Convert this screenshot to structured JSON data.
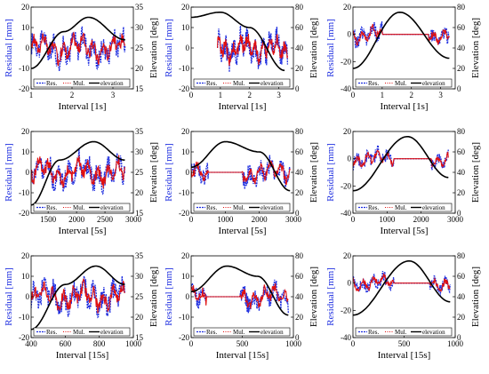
{
  "chart_data": [
    {
      "type": "line",
      "xlabel": "Interval [1s]",
      "ylabel_left": "Residual [mm]",
      "ylabel_right": "Elevation [deg]",
      "xlim": [
        1,
        3.5
      ],
      "xticks": [
        1,
        2,
        3
      ],
      "ylim_left": [
        -20,
        20
      ],
      "yticks_left": [
        -20,
        -10,
        0,
        10,
        20
      ],
      "ylim_right": [
        15,
        35
      ],
      "yticks_right": [
        15,
        20,
        25,
        30,
        35
      ],
      "x_active": [
        1,
        3.3
      ],
      "flat": [],
      "res_amp": 6,
      "mul_amp": 5,
      "elevation": {
        "x": [
          1,
          1.8,
          2.4,
          3.3
        ],
        "y": [
          20,
          29,
          32.5,
          27
        ]
      },
      "legend": [
        "Res.",
        "Mul.",
        "elevation"
      ]
    },
    {
      "type": "line",
      "xlabel": "Interval [1s]",
      "ylabel_left": "Residual [mm]",
      "ylabel_right": "Elevation [deg]",
      "xlim": [
        0,
        3.5
      ],
      "xticks": [
        0,
        1,
        2,
        3
      ],
      "ylim_left": [
        -20,
        20
      ],
      "yticks_left": [
        -20,
        -10,
        0,
        10,
        20
      ],
      "ylim_right": [
        0,
        80
      ],
      "yticks_right": [
        0,
        20,
        40,
        60,
        80
      ],
      "x_active": [
        0.9,
        3.3
      ],
      "flat": [
        [
          0,
          0.9
        ]
      ],
      "res_amp": 6,
      "mul_amp": 5,
      "elevation": {
        "x": [
          0,
          1,
          2,
          3.2
        ],
        "y": [
          70,
          75,
          60,
          18
        ]
      },
      "legend": [
        "Res.",
        "Mul.",
        "elevation"
      ]
    },
    {
      "type": "line",
      "xlabel": "Interval [1s]",
      "ylabel_left": "Residual [mm]",
      "ylabel_right": "Elevation [deg]",
      "xlim": [
        0,
        3.5
      ],
      "xticks": [
        0,
        1,
        2,
        3
      ],
      "ylim_left": [
        -40,
        20
      ],
      "yticks_left": [
        -40,
        -20,
        0,
        20
      ],
      "ylim_right": [
        0,
        80
      ],
      "yticks_right": [
        0,
        20,
        40,
        60,
        80
      ],
      "x_active": [
        0,
        3.3
      ],
      "flat": [
        [
          1,
          2.6
        ]
      ],
      "res_amp": 6,
      "mul_amp": 4,
      "elevation": {
        "x": [
          0,
          1.6,
          3.3
        ],
        "y": [
          20,
          75,
          30
        ]
      },
      "legend": [
        "Res.",
        "Mul.",
        "elevation"
      ]
    },
    {
      "type": "line",
      "xlabel": "Interval [5s]",
      "ylabel_left": "Residual [mm]",
      "ylabel_right": "Elevation [deg]",
      "xlim": [
        1200,
        3000
      ],
      "xticks": [
        1500,
        2000,
        2500,
        3000
      ],
      "ylim_left": [
        -20,
        20
      ],
      "yticks_left": [
        -20,
        -10,
        0,
        10,
        20
      ],
      "ylim_right": [
        15,
        35
      ],
      "yticks_right": [
        15,
        20,
        25,
        30,
        35
      ],
      "x_active": [
        1200,
        2850
      ],
      "flat": [],
      "res_amp": 6,
      "mul_amp": 5,
      "elevation": {
        "x": [
          1200,
          1700,
          2300,
          2850
        ],
        "y": [
          17,
          28,
          32.5,
          28
        ]
      },
      "legend": [
        "Res.",
        "Mul.",
        "elevation"
      ]
    },
    {
      "type": "line",
      "xlabel": "Interval [5s]",
      "ylabel_left": "Residual [mm]",
      "ylabel_right": "Elevation [deg]",
      "xlim": [
        0,
        3000
      ],
      "xticks": [
        0,
        1000,
        2000,
        3000
      ],
      "ylim_left": [
        -20,
        20
      ],
      "yticks_left": [
        -20,
        -10,
        0,
        10,
        20
      ],
      "ylim_right": [
        0,
        80
      ],
      "yticks_right": [
        0,
        20,
        40,
        60,
        80
      ],
      "x_active": [
        0,
        2900
      ],
      "flat": [
        [
          500,
          1500
        ]
      ],
      "res_amp": 5,
      "mul_amp": 4,
      "elevation": {
        "x": [
          0,
          1000,
          2000,
          2900
        ],
        "y": [
          45,
          70,
          60,
          22
        ]
      },
      "legend": [
        "Res.",
        "Mul.",
        "elevation"
      ]
    },
    {
      "type": "line",
      "xlabel": "Interval [5s]",
      "ylabel_left": "Residual [mm]",
      "ylabel_right": "Elevation [deg]",
      "xlim": [
        0,
        3000
      ],
      "xticks": [
        0,
        1000,
        2000,
        3000
      ],
      "ylim_left": [
        -40,
        20
      ],
      "yticks_left": [
        -40,
        -20,
        0,
        20
      ],
      "ylim_right": [
        0,
        80
      ],
      "yticks_right": [
        0,
        20,
        40,
        60,
        80
      ],
      "x_active": [
        0,
        2800
      ],
      "flat": [
        [
          1200,
          2300
        ]
      ],
      "res_amp": 5,
      "mul_amp": 4,
      "elevation": {
        "x": [
          0,
          1600,
          2800
        ],
        "y": [
          22,
          75,
          35
        ]
      },
      "legend": [
        "Res.",
        "Mul.",
        "elevation"
      ]
    },
    {
      "type": "line",
      "xlabel": "Interval [15s]",
      "ylabel_left": "Residual [mm]",
      "ylabel_right": "Elevation [deg]",
      "xlim": [
        400,
        1000
      ],
      "xticks": [
        400,
        600,
        800,
        1000
      ],
      "ylim_left": [
        -20,
        20
      ],
      "yticks_left": [
        -20,
        -10,
        0,
        10,
        20
      ],
      "ylim_right": [
        15,
        35
      ],
      "yticks_right": [
        15,
        20,
        25,
        30,
        35
      ],
      "x_active": [
        400,
        950
      ],
      "flat": [],
      "res_amp": 6,
      "mul_amp": 5,
      "elevation": {
        "x": [
          400,
          600,
          780,
          950
        ],
        "y": [
          17,
          28,
          32.5,
          28
        ]
      },
      "legend": [
        "Res.",
        "Mul.",
        "elevation"
      ]
    },
    {
      "type": "line",
      "xlabel": "Interval [15s]",
      "ylabel_left": "Residual [mm]",
      "ylabel_right": "Elevation [deg]",
      "xlim": [
        0,
        1000
      ],
      "xticks": [
        0,
        500,
        1000
      ],
      "ylim_left": [
        -20,
        20
      ],
      "yticks_left": [
        -20,
        -10,
        0,
        10,
        20
      ],
      "ylim_right": [
        0,
        80
      ],
      "yticks_right": [
        0,
        20,
        40,
        60,
        80
      ],
      "x_active": [
        0,
        950
      ],
      "flat": [
        [
          150,
          480
        ]
      ],
      "res_amp": 5,
      "mul_amp": 4,
      "elevation": {
        "x": [
          0,
          350,
          650,
          950
        ],
        "y": [
          45,
          70,
          60,
          22
        ]
      },
      "legend": [
        "Res.",
        "Mul.",
        "elevation"
      ]
    },
    {
      "type": "line",
      "xlabel": "Interval [15s]",
      "ylabel_left": "Residual [mm]",
      "ylabel_right": "Elevation [deg]",
      "xlim": [
        0,
        1000
      ],
      "xticks": [
        0,
        500,
        1000
      ],
      "ylim_left": [
        -40,
        20
      ],
      "yticks_left": [
        -40,
        -20,
        0,
        20
      ],
      "ylim_right": [
        0,
        80
      ],
      "yticks_right": [
        0,
        20,
        40,
        60,
        80
      ],
      "x_active": [
        0,
        950
      ],
      "flat": [
        [
          400,
          750
        ]
      ],
      "res_amp": 5,
      "mul_amp": 4,
      "elevation": {
        "x": [
          0,
          550,
          950
        ],
        "y": [
          22,
          75,
          35
        ]
      },
      "legend": [
        "Res.",
        "Mul.",
        "elevation"
      ]
    }
  ],
  "colors": {
    "res": "#1f2fe0",
    "mul": "#e01010",
    "elevation": "#000000",
    "axis": "#000000",
    "ylabel_left": "#1f2fe0"
  }
}
